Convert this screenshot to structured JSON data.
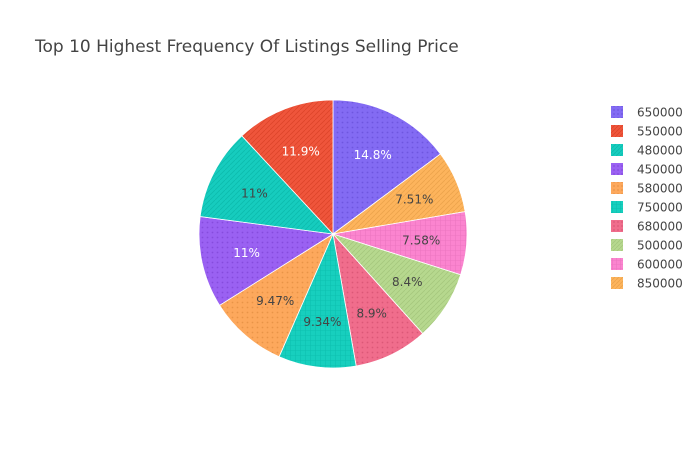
{
  "chart_data": {
    "type": "pie",
    "title": "Top 10 Highest Frequency Of Listings Selling Price",
    "slices": [
      {
        "label": "650000",
        "value": 14.8,
        "text": "14.8%",
        "color": "#836BF3",
        "pattern": "dots"
      },
      {
        "label": "850000",
        "value": 7.51,
        "text": "7.51%",
        "color": "#FDB45C",
        "pattern": "stripes"
      },
      {
        "label": "600000",
        "value": 7.58,
        "text": "7.58%",
        "color": "#FB84CF",
        "pattern": "grid"
      },
      {
        "label": "500000",
        "value": 8.4,
        "text": "8.4%",
        "color": "#B6D88E",
        "pattern": "stripes"
      },
      {
        "label": "680000",
        "value": 8.9,
        "text": "8.9%",
        "color": "#F06D8C",
        "pattern": "dots"
      },
      {
        "label": "750000",
        "value": 9.34,
        "text": "9.34%",
        "color": "#17CFBE",
        "pattern": "grid"
      },
      {
        "label": "580000",
        "value": 9.47,
        "text": "9.47%",
        "color": "#FDA85C",
        "pattern": "dots"
      },
      {
        "label": "450000",
        "value": 11.0,
        "text": "11%",
        "color": "#9A61F2",
        "pattern": "dots"
      },
      {
        "label": "480000",
        "value": 11.0,
        "text": "11%",
        "color": "#16CCBE",
        "pattern": "stripes"
      },
      {
        "label": "550000",
        "value": 11.9,
        "text": "11.9%",
        "color": "#EF553B",
        "pattern": "stripes"
      }
    ],
    "legend": {
      "position": "right",
      "items": [
        "650000",
        "550000",
        "480000",
        "450000",
        "580000",
        "750000",
        "680000",
        "500000",
        "600000",
        "850000"
      ]
    },
    "start": "12 o'clock",
    "direction": "clockwise"
  }
}
